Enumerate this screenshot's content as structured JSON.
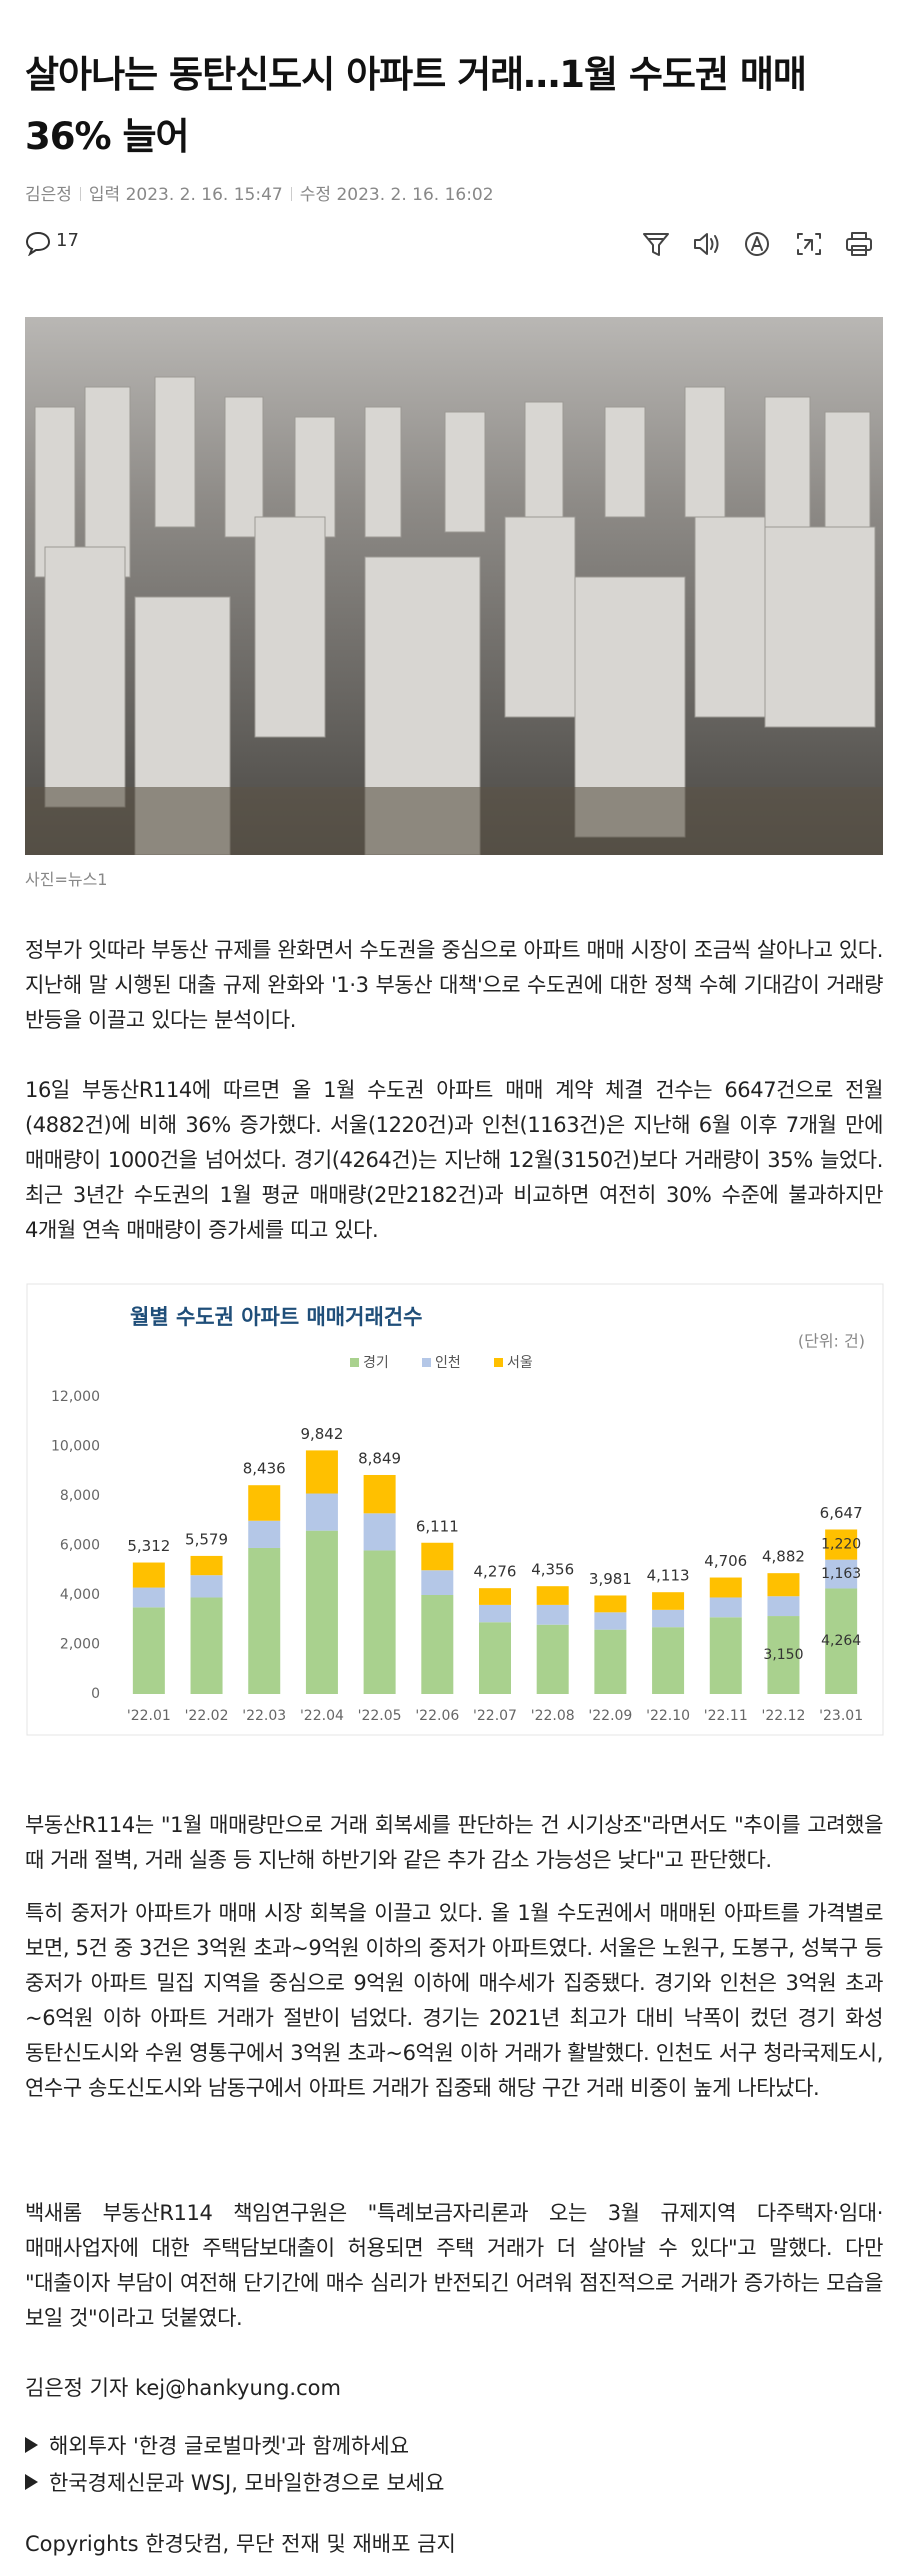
{
  "header": {
    "title": "살아나는 동탄신도시 아파트 거래…1월 수도권 매매 36% 늘어",
    "author": "김은정",
    "input_label": "입력",
    "input_time": "2023. 2. 16. 15:47",
    "modify_label": "수정",
    "modify_time": "2023. 2. 16. 16:02",
    "comment_count": "17"
  },
  "photo": {
    "caption": "사진=뉴스1"
  },
  "paragraphs": [
    "정부가 잇따라 부동산 규제를 완화면서 수도권을 중심으로 아파트 매매 시장이 조금씩 살아나고 있다. 지난해 말 시행된 대출 규제 완화와 '1·3 부동산 대책'으로 수도권에 대한 정책 수혜 기대감이 거래량 반등을 이끌고 있다는 분석이다.",
    "16일 부동산R114에 따르면 올 1월 수도권 아파트 매매 계약 체결 건수는 6647건으로 전월(4882건)에 비해 36% 증가했다. 서울(1220건)과 인천(1163건)은 지난해 6월 이후 7개월 만에 매매량이 1000건을 넘어섰다. 경기(4264건)는 지난해 12월(3150건)보다 거래량이 35% 늘었다. 최근 3년간 수도권의 1월 평균 매매량(2만2182건)과 비교하면 여전히 30% 수준에 불과하지만 4개월 연속 매매량이 증가세를 띠고 있다.",
    "부동산R114는 \"1월 매매량만으로 거래 회복세를 판단하는 건 시기상조\"라면서도 \"추이를 고려했을 때 거래 절벽, 거래 실종 등 지난해 하반기와 같은 추가 감소 가능성은 낮다\"고 판단했다.",
    "특히 중저가 아파트가 매매 시장 회복을 이끌고 있다. 올 1월 수도권에서 매매된 아파트를 가격별로 보면, 5건 중 3건은 3억원 초과~9억원 이하의 중저가 아파트였다. 서울은 노원구, 도봉구, 성북구 등 중저가 아파트 밀집 지역을 중심으로 9억원 이하에 매수세가 집중됐다. 경기와 인천은 3억원 초과~6억원 이하 아파트 거래가 절반이 넘었다. 경기는 2021년 최고가 대비 낙폭이 컸던 경기 화성 동탄신도시와 수원 영통구에서 3억원 초과~6억원 이하 거래가 활발했다. 인천도 서구 청라국제도시, 연수구 송도신도시와 남동구에서 아파트 거래가 집중돼 해당 구간 거래 비중이 높게 나타났다.",
    "백새롬 부동산R114 책임연구원은 \"특례보금자리론과 오는 3월 규제지역 다주택자·임대·매매사업자에 대한 주택담보대출이 허용되면 주택 거래가 더 살아날 수 있다\"고 말했다. 다만 \"대출이자 부담이 여전해 단기간에 매수 심리가 반전되긴 어려워 점진적으로 거래가 증가하는 모습을 보일 것\"이라고 덧붙였다."
  ],
  "reporter": "김은정 기자 kej@hankyung.com",
  "links": [
    "해외투자 '한경 글로벌마켓'과 함께하세요",
    "한국경제신문과 WSJ, 모바일한경으로 보세요"
  ],
  "copyright": "Copyrights 한경닷컴, 무단 전재 및 재배포 금지",
  "chart_data": {
    "type": "stacked_bar",
    "title": "월별 수도권 아파트 매매거래건수",
    "unit": "(단위: 건)",
    "categories": [
      "'22.01",
      "'22.02",
      "'22.03",
      "'22.04",
      "'22.05",
      "'22.06",
      "'22.07",
      "'22.08",
      "'22.09",
      "'22.10",
      "'22.11",
      "'22.12",
      "'23.01"
    ],
    "series": [
      {
        "name": "경기",
        "color": "#a9d18e",
        "values": [
          3500,
          3900,
          5900,
          6600,
          5800,
          4000,
          2900,
          2800,
          2600,
          2700,
          3100,
          3150,
          4264
        ],
        "value_labels": [
          null,
          null,
          null,
          null,
          null,
          null,
          null,
          null,
          null,
          null,
          null,
          "3,150",
          "4,264"
        ]
      },
      {
        "name": "인천",
        "color": "#b4c7e7",
        "values": [
          800,
          900,
          1100,
          1500,
          1500,
          1000,
          700,
          800,
          700,
          700,
          800,
          800,
          1163
        ],
        "value_labels": [
          null,
          null,
          null,
          null,
          null,
          null,
          null,
          null,
          null,
          null,
          null,
          null,
          "1,163"
        ]
      },
      {
        "name": "서울",
        "color": "#ffc000",
        "values": [
          1012,
          779,
          1436,
          1742,
          1549,
          1111,
          676,
          756,
          681,
          713,
          806,
          932,
          1220
        ],
        "value_labels": [
          null,
          null,
          null,
          null,
          null,
          null,
          null,
          null,
          null,
          null,
          null,
          null,
          "1,220"
        ]
      }
    ],
    "totals": [
      5312,
      5579,
      8436,
      9842,
      8849,
      6111,
      4276,
      4356,
      3981,
      4113,
      4706,
      4882,
      6647
    ],
    "total_labels": [
      "5,312",
      "5,579",
      "8,436",
      "9,842",
      "8,849",
      "6,111",
      "4,276",
      "4,356",
      "3,981",
      "4,113",
      "4,706",
      "4,882",
      "6,647"
    ],
    "ylim": [
      0,
      12000
    ],
    "yticks": [
      0,
      {
        "value": 2000,
        "label": "2,000"
      },
      {
        "value": 4000,
        "label": "4,000"
      },
      {
        "value": 6000,
        "label": "6,000"
      },
      {
        "value": 8000,
        "label": "8,000"
      },
      {
        "value": 10000,
        "label": "10,000"
      },
      {
        "value": 12000,
        "label": "12,000"
      }
    ],
    "grid": false,
    "legend": "top"
  }
}
